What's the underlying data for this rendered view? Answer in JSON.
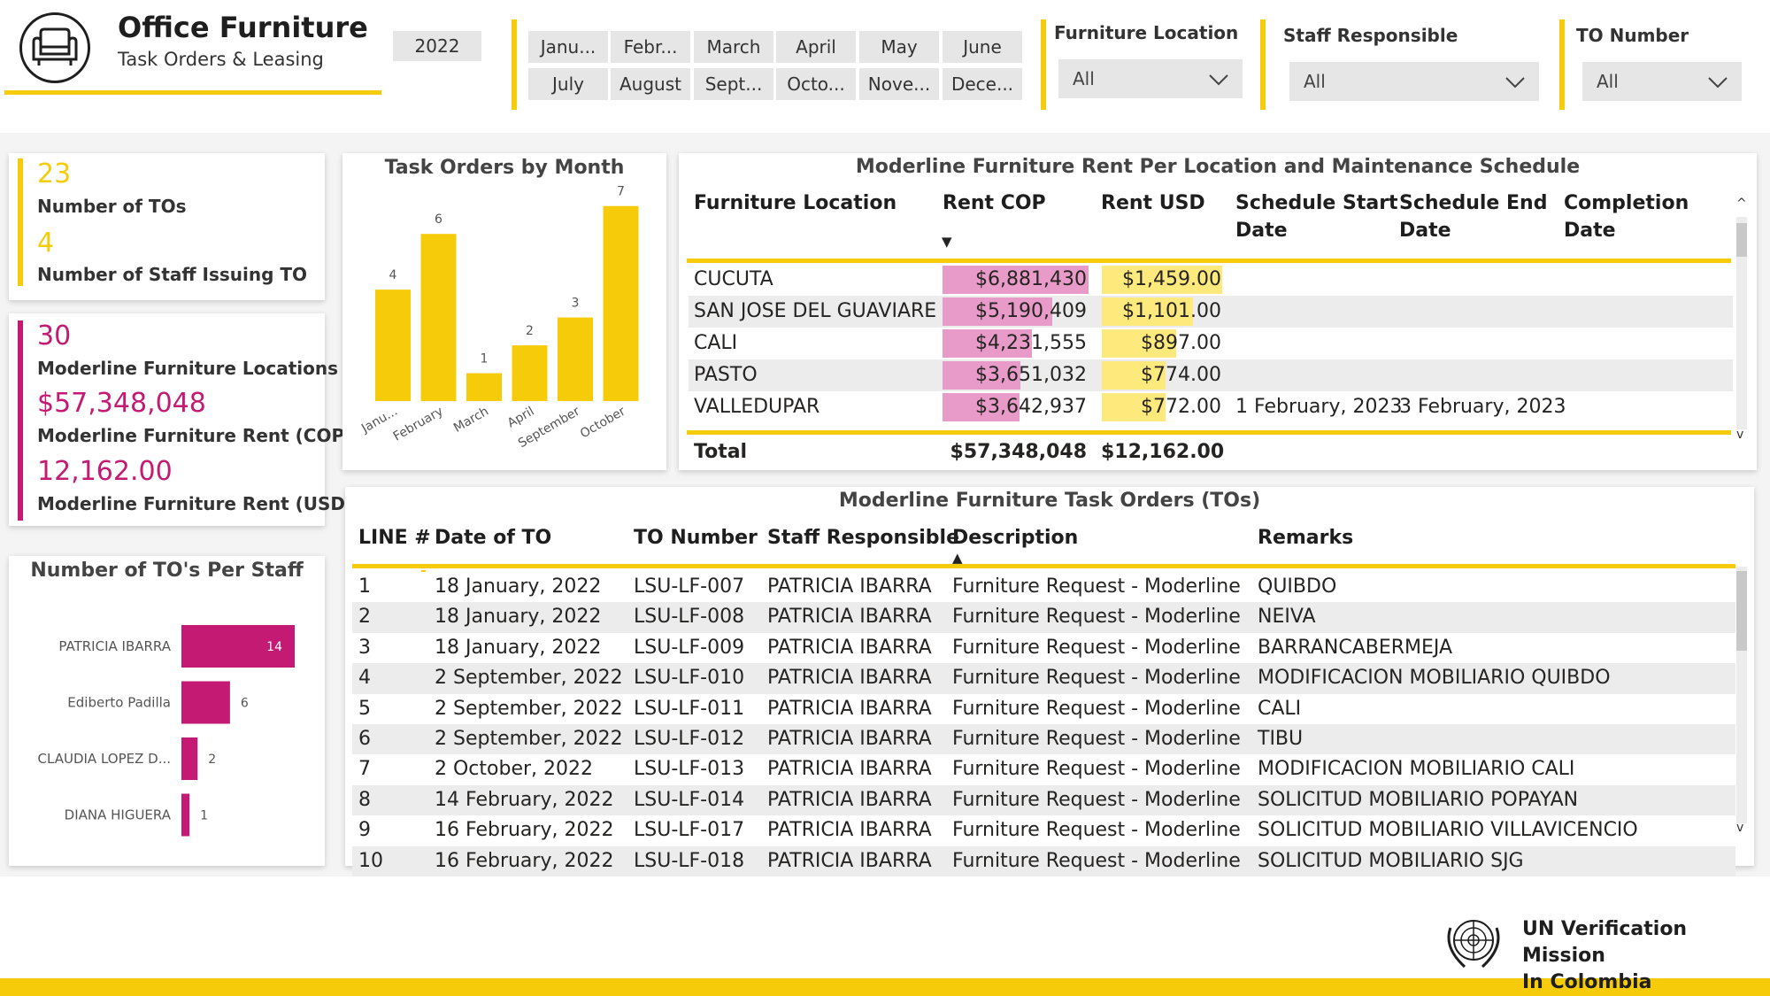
{
  "header": {
    "title": "Office Furniture",
    "subtitle": "Task Orders & Leasing",
    "logo_icon": "armchair-icon"
  },
  "year_slicer": {
    "selected": "2022"
  },
  "month_slicer": {
    "row1": [
      "Janu...",
      "Febr...",
      "March",
      "April",
      "May",
      "June"
    ],
    "row2": [
      "July",
      "August",
      "Sept...",
      "Octo...",
      "Nove...",
      "Dece..."
    ]
  },
  "filters": {
    "location": {
      "label": "Furniture Location",
      "value": "All"
    },
    "staff": {
      "label": "Staff Responsible",
      "value": "All"
    },
    "to_number": {
      "label": "TO Number",
      "value": "All"
    }
  },
  "kpis": {
    "num_tos": {
      "value": "23",
      "label": "Number of TOs"
    },
    "num_staff": {
      "value": "4",
      "label": "Number of Staff Issuing TO"
    },
    "locations": {
      "value": "30",
      "label": "Moderline Furniture Locations"
    },
    "rent_cop": {
      "value": "$57,348,048",
      "label": "Moderline Furniture Rent (COP)"
    },
    "rent_usd": {
      "value": "12,162.00",
      "label": "Moderline Furniture Rent (USD)"
    }
  },
  "colors": {
    "accent_yellow": "#f6cc0a",
    "accent_magenta": "#c41a73",
    "bar_pink": "#e89bc8",
    "bar_lightyellow": "#fde97c"
  },
  "chart_data": [
    {
      "type": "bar",
      "title": "Task Orders by Month",
      "categories": [
        "Janu...",
        "February",
        "March",
        "April",
        "September",
        "October"
      ],
      "values": [
        4,
        6,
        1,
        2,
        3,
        7
      ],
      "ylim": [
        0,
        7.5
      ]
    },
    {
      "type": "bar",
      "orientation": "horizontal",
      "title": "Number of TO's Per Staff",
      "categories": [
        "PATRICIA IBARRA",
        "Ediberto Padilla",
        "CLAUDIA LOPEZ D...",
        "DIANA HIGUERA"
      ],
      "values": [
        14,
        6,
        2,
        1
      ],
      "xlim": [
        0,
        14
      ]
    }
  ],
  "rent_table": {
    "title": "Moderline Furniture Rent Per Location and Maintenance Schedule",
    "headers": {
      "location": "Furniture Location",
      "cop": "Rent COP",
      "usd": "Rent USD",
      "start_1": "Schedule Start",
      "start_2": "Date",
      "end_1": "Schedule End",
      "end_2": "Date",
      "comp_1": "Completion",
      "comp_2": "Date"
    },
    "sort_indicator": "▼",
    "rows": [
      {
        "location": "CUCUTA",
        "cop": "$6,881,430",
        "usd": "$1,459.00",
        "cop_value": 6881430,
        "usd_value": 1459,
        "start": "",
        "end": ""
      },
      {
        "location": "SAN JOSE DEL GUAVIARE",
        "cop": "$5,190,409",
        "usd": "$1,101.00",
        "cop_value": 5190409,
        "usd_value": 1101,
        "start": "",
        "end": ""
      },
      {
        "location": "CALI",
        "cop": "$4,231,555",
        "usd": "$897.00",
        "cop_value": 4231555,
        "usd_value": 897,
        "start": "",
        "end": ""
      },
      {
        "location": "PASTO",
        "cop": "$3,651,032",
        "usd": "$774.00",
        "cop_value": 3651032,
        "usd_value": 774,
        "start": "",
        "end": ""
      },
      {
        "location": "VALLEDUPAR",
        "cop": "$3,642,937",
        "usd": "$772.00",
        "cop_value": 3642937,
        "usd_value": 772,
        "start": "1 February, 2023",
        "end": "3 February, 2023"
      }
    ],
    "total_label": "Total",
    "total_cop": "$57,348,048",
    "total_usd": "$12,162.00"
  },
  "to_table": {
    "title": "Moderline Furniture Task Orders (TOs)",
    "headers": {
      "line": "LINE #",
      "date": "Date of TO",
      "to": "TO Number",
      "staff": "Staff Responsible",
      "desc": "Description",
      "remarks": "Remarks"
    },
    "sort_indicator": "▲",
    "rows": [
      {
        "line": "1",
        "date": "18 January, 2022",
        "to": "LSU-LF-007",
        "staff": "PATRICIA IBARRA",
        "desc": "Furniture Request - Moderline",
        "remarks": "QUIBDO"
      },
      {
        "line": "2",
        "date": "18 January, 2022",
        "to": "LSU-LF-008",
        "staff": "PATRICIA IBARRA",
        "desc": "Furniture Request - Moderline",
        "remarks": "NEIVA"
      },
      {
        "line": "3",
        "date": "18 January, 2022",
        "to": "LSU-LF-009",
        "staff": "PATRICIA IBARRA",
        "desc": "Furniture Request - Moderline",
        "remarks": "BARRANCABERMEJA"
      },
      {
        "line": "4",
        "date": "2 September, 2022",
        "to": "LSU-LF-010",
        "staff": "PATRICIA IBARRA",
        "desc": "Furniture Request - Moderline",
        "remarks": "MODIFICACION MOBILIARIO QUIBDO"
      },
      {
        "line": "5",
        "date": "2 September, 2022",
        "to": "LSU-LF-011",
        "staff": "PATRICIA IBARRA",
        "desc": "Furniture Request - Moderline",
        "remarks": "CALI"
      },
      {
        "line": "6",
        "date": "2 September, 2022",
        "to": "LSU-LF-012",
        "staff": "PATRICIA IBARRA",
        "desc": "Furniture Request - Moderline",
        "remarks": "TIBU"
      },
      {
        "line": "7",
        "date": "2 October, 2022",
        "to": "LSU-LF-013",
        "staff": "PATRICIA IBARRA",
        "desc": "Furniture Request - Moderline",
        "remarks": "MODIFICACION MOBILIARIO CALI"
      },
      {
        "line": "8",
        "date": "14 February, 2022",
        "to": "LSU-LF-014",
        "staff": "PATRICIA IBARRA",
        "desc": "Furniture Request - Moderline",
        "remarks": "SOLICITUD MOBILIARIO POPAYAN"
      },
      {
        "line": "9",
        "date": "16 February, 2022",
        "to": "LSU-LF-017",
        "staff": "PATRICIA IBARRA",
        "desc": "Furniture Request - Moderline",
        "remarks": "SOLICITUD MOBILIARIO VILLAVICENCIO"
      },
      {
        "line": "10",
        "date": "16 February, 2022",
        "to": "LSU-LF-018",
        "staff": "PATRICIA IBARRA",
        "desc": "Furniture Request - Moderline",
        "remarks": "SOLICITUD MOBILIARIO SJG"
      }
    ]
  },
  "footer": {
    "org_line1": "UN Verification Mission",
    "org_line2": "In Colombia",
    "emblem_icon": "un-emblem-icon"
  }
}
